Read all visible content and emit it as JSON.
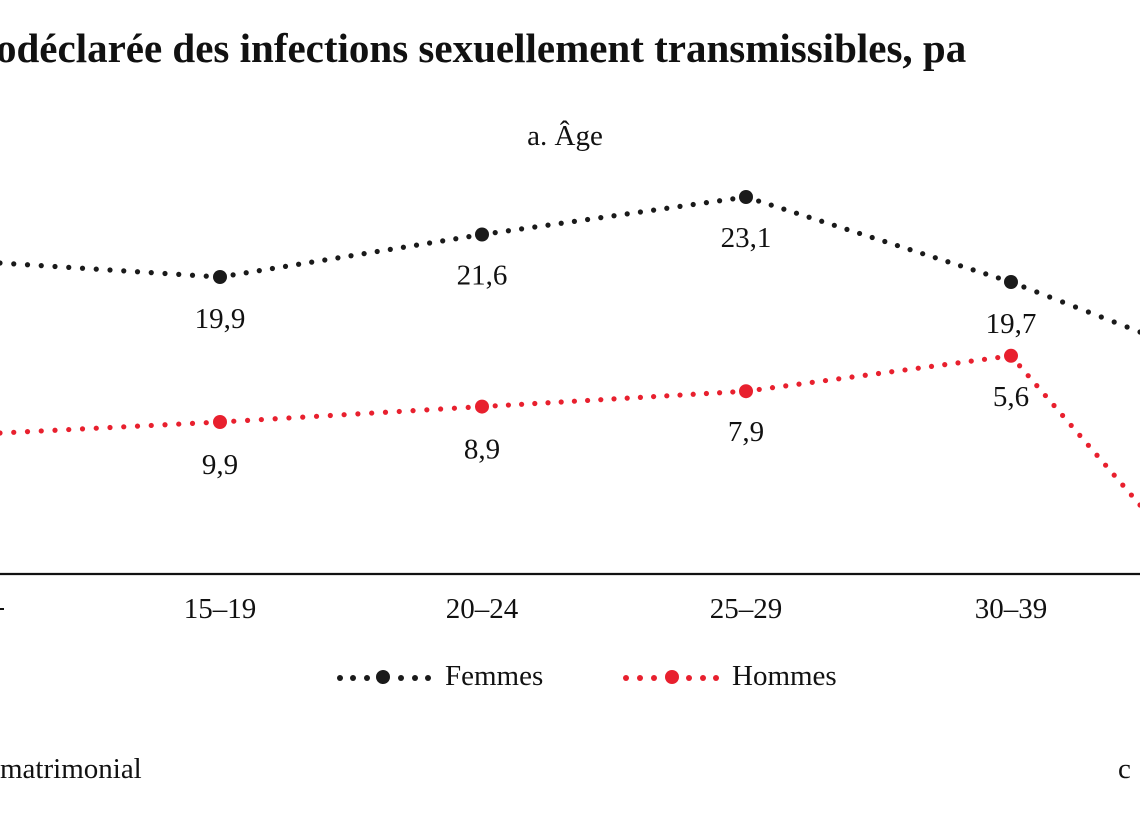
{
  "title": "odéclarée des infections sexuellement transmissibles, pa",
  "subtitle": "a. Âge",
  "footer": {
    "left_text": "matrimonial",
    "right_text": "c"
  },
  "colors": {
    "femmes": "#1a1a1a",
    "hommes": "#e8202e",
    "axis": "#111111",
    "text": "#111111"
  },
  "chart_data": {
    "type": "line",
    "title": "",
    "subtitle": "a. Âge",
    "categories": [
      "15–19",
      "20–24",
      "25–29",
      "30–39"
    ],
    "series": [
      {
        "name": "Femmes",
        "values": [
          19.9,
          21.6,
          23.1,
          19.7
        ],
        "labels": [
          "19,9",
          "21,6",
          "23,1",
          "19,7"
        ],
        "color": "#1a1a1a",
        "line_style": "dotted"
      },
      {
        "name": "Hommes",
        "values": [
          9.9,
          8.9,
          7.9,
          5.6
        ],
        "labels": [
          "9,9",
          "8,9",
          "7,9",
          "5,6"
        ],
        "color": "#e8202e",
        "line_style": "dotted"
      }
    ],
    "grid": false,
    "legend_position": "bottom-center",
    "xlabel": "",
    "ylabel": "",
    "y_axis_visible": false,
    "clipped": "left and right edges cropped; series continue beyond visible categories"
  }
}
